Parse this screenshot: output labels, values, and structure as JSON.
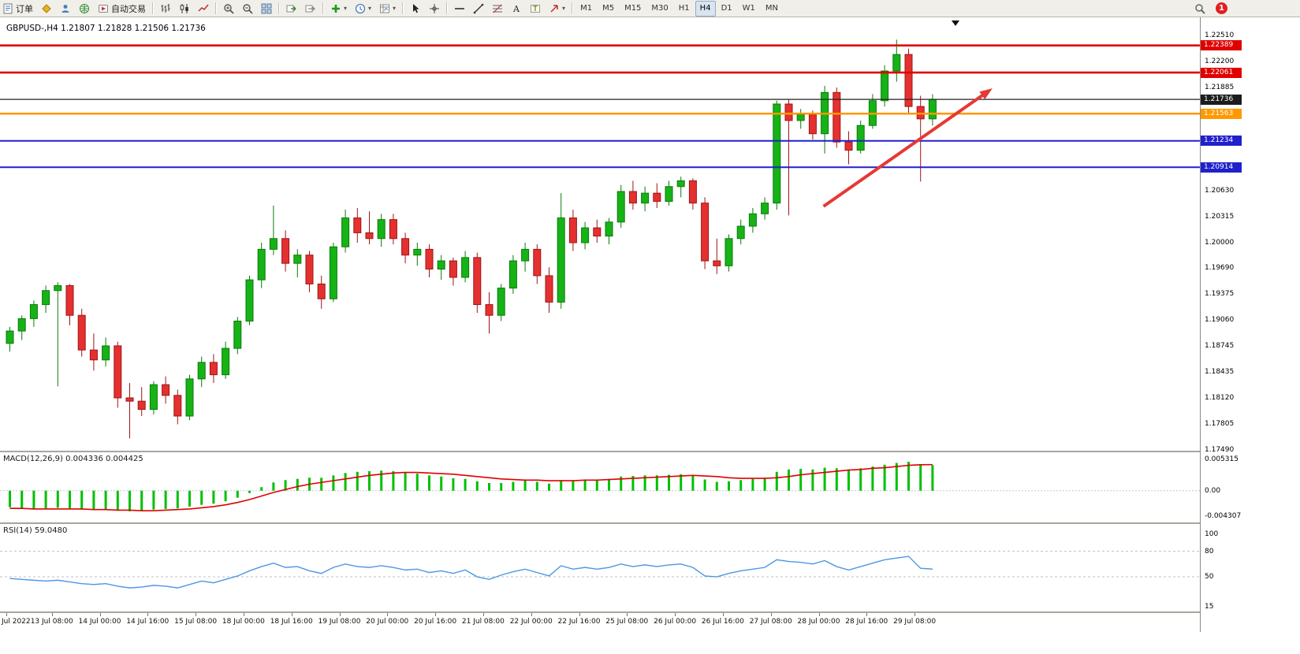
{
  "colors": {
    "bull": "#16b316",
    "bull_stroke": "#0a7a0a",
    "bear": "#e53030",
    "bear_stroke": "#9e1515",
    "macd_bar": "#00c000",
    "macd_signal": "#e00000",
    "rsi_line": "#4d97e3",
    "arrow": "#e53935",
    "badge_black": "#1c1c1c"
  },
  "toolbar": {
    "dropdown_glyph": "▾",
    "groups": [
      {
        "name": "trade",
        "items": [
          {
            "name": "new-order-button",
            "icon": "new-order",
            "label": "订单"
          },
          {
            "name": "market-watch-button",
            "icon": "gold"
          },
          {
            "name": "profiles-button",
            "icon": "person"
          },
          {
            "name": "navigator-button",
            "icon": "globe"
          },
          {
            "name": "autotrading-button",
            "icon": "autotrade",
            "label": "自动交易"
          }
        ]
      },
      {
        "name": "chart-type",
        "items": [
          {
            "name": "bar-chart-button",
            "icon": "ohlc"
          },
          {
            "name": "candlestick-button",
            "icon": "candles"
          },
          {
            "name": "line-chart-button",
            "icon": "linechart"
          }
        ]
      },
      {
        "name": "zoom",
        "items": [
          {
            "name": "zoom-in-button",
            "icon": "zoom-in"
          },
          {
            "name": "zoom-out-button",
            "icon": "zoom-out"
          },
          {
            "name": "tile-windows-button",
            "icon": "tile"
          }
        ]
      },
      {
        "name": "scroll",
        "items": [
          {
            "name": "auto-scroll-button",
            "icon": "auto-scroll"
          },
          {
            "name": "chart-shift-button",
            "icon": "chart-shift"
          }
        ]
      },
      {
        "name": "objects",
        "items": [
          {
            "name": "indicators-button",
            "icon": "indicator-plus",
            "dropdown": true
          },
          {
            "name": "periods-button",
            "icon": "clock",
            "dropdown": true
          },
          {
            "name": "templates-button",
            "icon": "template",
            "dropdown": true
          }
        ]
      },
      {
        "name": "cursor-tools",
        "items": [
          {
            "name": "cursor-button",
            "icon": "cursor"
          },
          {
            "name": "crosshair-button",
            "icon": "crosshair"
          }
        ]
      },
      {
        "name": "draw-tools",
        "items": [
          {
            "name": "horizontal-line-button",
            "icon": "hline"
          },
          {
            "name": "trendline-button",
            "icon": "trendline"
          },
          {
            "name": "fibonacci-button",
            "icon": "fibo"
          },
          {
            "name": "text-button",
            "icon": "text-a"
          },
          {
            "name": "text-label-button",
            "icon": "text-frame"
          },
          {
            "name": "arrows-button",
            "icon": "arrow-shape",
            "dropdown": true
          }
        ]
      }
    ],
    "timeframes": {
      "items": [
        "M1",
        "M5",
        "M15",
        "M30",
        "H1",
        "H4",
        "D1",
        "W1",
        "MN"
      ],
      "selected": "H4"
    },
    "right": {
      "search": {
        "name": "search-button",
        "icon": "search"
      },
      "badge": "1"
    }
  },
  "chart": {
    "title": "GBPUSD-,H4 1.21807 1.21828 1.21506 1.21736",
    "symbol": "GBPUSD-",
    "timeframe": "H4"
  },
  "chart_data": {
    "type": "candlestick",
    "ohlc": {
      "open": 1.21807,
      "high": 1.21828,
      "low": 1.21506,
      "close": 1.21736
    },
    "price_axis": {
      "min": 1.1748,
      "max": 1.2273,
      "labels": [
        {
          "v": 1.2251,
          "t": "1.22510"
        },
        {
          "v": 1.222,
          "t": "1.22200"
        },
        {
          "v": 1.21885,
          "t": "1.21885"
        },
        {
          "v": 1.2063,
          "t": "1.20630"
        },
        {
          "v": 1.20315,
          "t": "1.20315"
        },
        {
          "v": 1.2,
          "t": "1.20000"
        },
        {
          "v": 1.1969,
          "t": "1.19690"
        },
        {
          "v": 1.19375,
          "t": "1.19375"
        },
        {
          "v": 1.1906,
          "t": "1.19060"
        },
        {
          "v": 1.18745,
          "t": "1.18745"
        },
        {
          "v": 1.18435,
          "t": "1.18435"
        },
        {
          "v": 1.1812,
          "t": "1.18120"
        },
        {
          "v": 1.17805,
          "t": "1.17805"
        },
        {
          "v": 1.1749,
          "t": "1.17490"
        }
      ]
    },
    "hlines": [
      {
        "price": 1.22389,
        "t": "1.22389",
        "color": "#e00000",
        "w": 2.6
      },
      {
        "price": 1.22061,
        "t": "1.22061",
        "color": "#e00000",
        "w": 2.6
      },
      {
        "price": 1.21736,
        "t": "1.21736",
        "color": "#222222",
        "w": 1.2,
        "role": "current-price"
      },
      {
        "price": 1.21563,
        "t": "1.21563",
        "color": "#ff9900",
        "w": 2.6
      },
      {
        "price": 1.21234,
        "t": "1.21234",
        "color": "#2020cc",
        "w": 2
      },
      {
        "price": 1.20914,
        "t": "1.20914",
        "color": "#2020cc",
        "w": 2
      }
    ],
    "candles": [
      [
        1.1878,
        1.1898,
        1.1868,
        1.1893
      ],
      [
        1.1893,
        1.1912,
        1.1882,
        1.1908
      ],
      [
        1.1908,
        1.193,
        1.1898,
        1.1925
      ],
      [
        1.1925,
        1.1948,
        1.1915,
        1.1942
      ],
      [
        1.1942,
        1.1952,
        1.1826,
        1.1948
      ],
      [
        1.1948,
        1.195,
        1.19,
        1.1912
      ],
      [
        1.1912,
        1.192,
        1.1862,
        1.187
      ],
      [
        1.187,
        1.189,
        1.1845,
        1.1858
      ],
      [
        1.1858,
        1.1885,
        1.185,
        1.1875
      ],
      [
        1.1875,
        1.188,
        1.18,
        1.1812
      ],
      [
        1.1812,
        1.183,
        1.1763,
        1.1808
      ],
      [
        1.1808,
        1.1825,
        1.179,
        1.1798
      ],
      [
        1.1798,
        1.1832,
        1.1792,
        1.1828
      ],
      [
        1.1828,
        1.1838,
        1.1805,
        1.1815
      ],
      [
        1.1815,
        1.1822,
        1.178,
        1.179
      ],
      [
        1.179,
        1.184,
        1.1785,
        1.1835
      ],
      [
        1.1835,
        1.1862,
        1.1825,
        1.1855
      ],
      [
        1.1855,
        1.1865,
        1.183,
        1.184
      ],
      [
        1.184,
        1.188,
        1.1835,
        1.1872
      ],
      [
        1.1872,
        1.191,
        1.1865,
        1.1905
      ],
      [
        1.1905,
        1.196,
        1.19,
        1.1955
      ],
      [
        1.1955,
        1.2,
        1.1945,
        1.1992
      ],
      [
        1.1992,
        1.2045,
        1.1985,
        1.2005
      ],
      [
        1.2005,
        1.2015,
        1.1965,
        1.1975
      ],
      [
        1.1975,
        1.1992,
        1.1958,
        1.1985
      ],
      [
        1.1985,
        1.199,
        1.194,
        1.195
      ],
      [
        1.195,
        1.196,
        1.192,
        1.1932
      ],
      [
        1.1932,
        1.2,
        1.1928,
        1.1995
      ],
      [
        1.1995,
        1.204,
        1.1988,
        1.203
      ],
      [
        1.203,
        1.2042,
        1.2,
        1.2012
      ],
      [
        1.2012,
        1.2038,
        1.1998,
        1.2005
      ],
      [
        1.2005,
        1.2035,
        1.1995,
        1.2028
      ],
      [
        1.2028,
        1.2035,
        1.1998,
        1.2005
      ],
      [
        1.2005,
        1.2012,
        1.1975,
        1.1985
      ],
      [
        1.1985,
        1.2,
        1.1972,
        1.1992
      ],
      [
        1.1992,
        1.1998,
        1.1958,
        1.1968
      ],
      [
        1.1968,
        1.1985,
        1.1955,
        1.1978
      ],
      [
        1.1978,
        1.1982,
        1.1948,
        1.1958
      ],
      [
        1.1958,
        1.199,
        1.1952,
        1.1982
      ],
      [
        1.1982,
        1.1988,
        1.1915,
        1.1925
      ],
      [
        1.1925,
        1.194,
        1.189,
        1.1912
      ],
      [
        1.1912,
        1.195,
        1.1905,
        1.1945
      ],
      [
        1.1945,
        1.1985,
        1.1938,
        1.1978
      ],
      [
        1.1978,
        1.2,
        1.1965,
        1.1992
      ],
      [
        1.1992,
        1.1998,
        1.195,
        1.196
      ],
      [
        1.196,
        1.197,
        1.1915,
        1.1928
      ],
      [
        1.1928,
        1.206,
        1.192,
        1.203
      ],
      [
        1.203,
        1.204,
        1.199,
        1.2
      ],
      [
        1.2,
        1.2025,
        1.1992,
        1.2018
      ],
      [
        1.2018,
        1.2028,
        1.2,
        1.2008
      ],
      [
        1.2008,
        1.203,
        1.1998,
        1.2025
      ],
      [
        1.2025,
        1.207,
        1.2018,
        1.2062
      ],
      [
        1.2062,
        1.2075,
        1.204,
        1.2048
      ],
      [
        1.2048,
        1.2068,
        1.2038,
        1.206
      ],
      [
        1.206,
        1.2072,
        1.2042,
        1.205
      ],
      [
        1.205,
        1.2075,
        1.2045,
        1.2068
      ],
      [
        1.2068,
        1.208,
        1.2055,
        1.2075
      ],
      [
        1.2075,
        1.2078,
        1.204,
        1.2048
      ],
      [
        1.2048,
        1.2055,
        1.1968,
        1.1978
      ],
      [
        1.1978,
        1.2005,
        1.1962,
        1.1972
      ],
      [
        1.1972,
        1.201,
        1.1965,
        1.2005
      ],
      [
        1.2005,
        1.2028,
        1.1998,
        1.202
      ],
      [
        1.202,
        1.2042,
        1.2012,
        1.2035
      ],
      [
        1.2035,
        1.2055,
        1.2028,
        1.2048
      ],
      [
        1.2048,
        1.2172,
        1.204,
        1.2168
      ],
      [
        1.2168,
        1.2174,
        1.2033,
        1.2148
      ],
      [
        1.2148,
        1.2162,
        1.2138,
        1.2155
      ],
      [
        1.2155,
        1.216,
        1.2125,
        1.2132
      ],
      [
        1.2132,
        1.219,
        1.2108,
        1.2182
      ],
      [
        1.2182,
        1.2188,
        1.2115,
        1.2122
      ],
      [
        1.2122,
        1.2135,
        1.2095,
        1.2112
      ],
      [
        1.2112,
        1.2148,
        1.2108,
        1.2142
      ],
      [
        1.2142,
        1.218,
        1.2138,
        1.2172
      ],
      [
        1.2172,
        1.2215,
        1.2165,
        1.2208
      ],
      [
        1.2208,
        1.2246,
        1.2195,
        1.2228
      ],
      [
        1.2228,
        1.2235,
        1.2155,
        1.2165
      ],
      [
        1.2165,
        1.2178,
        1.2074,
        1.215
      ],
      [
        1.215,
        1.218,
        1.2142,
        1.21736
      ]
    ],
    "time_labels": [
      {
        "i": -0.3,
        "t": "Jul 2022"
      },
      {
        "i": 3.5,
        "t": "13 Jul 08:00"
      },
      {
        "i": 7.5,
        "t": "14 Jul 00:00"
      },
      {
        "i": 11.5,
        "t": "14 Jul 16:00"
      },
      {
        "i": 15.5,
        "t": "15 Jul 08:00"
      },
      {
        "i": 19.5,
        "t": "18 Jul 00:00"
      },
      {
        "i": 23.5,
        "t": "18 Jul 16:00"
      },
      {
        "i": 27.5,
        "t": "19 Jul 08:00"
      },
      {
        "i": 31.5,
        "t": "20 Jul 00:00"
      },
      {
        "i": 35.5,
        "t": "20 Jul 16:00"
      },
      {
        "i": 39.5,
        "t": "21 Jul 08:00"
      },
      {
        "i": 43.5,
        "t": "22 Jul 00:00"
      },
      {
        "i": 47.5,
        "t": "22 Jul 16:00"
      },
      {
        "i": 51.5,
        "t": "25 Jul 08:00"
      },
      {
        "i": 55.5,
        "t": "26 Jul 00:00"
      },
      {
        "i": 59.5,
        "t": "26 Jul 16:00"
      },
      {
        "i": 63.5,
        "t": "27 Jul 08:00"
      },
      {
        "i": 67.5,
        "t": "28 Jul 00:00"
      },
      {
        "i": 71.5,
        "t": "28 Jul 16:00"
      },
      {
        "i": 75.5,
        "t": "29 Jul 08:00"
      }
    ],
    "annotations": {
      "trend_arrow": {
        "i1": 67.9,
        "p1": 1.2044,
        "i2": 82,
        "p2": 1.2187,
        "color": "#e53935",
        "width": 4
      }
    },
    "macd": {
      "label": "MACD(12,26,9) 0.004336 0.004425",
      "params": "12,26,9",
      "main_value": 0.004336,
      "signal_value": 0.004425,
      "axis": {
        "min": -0.00538,
        "max": 0.00638,
        "ticks": [
          {
            "v": 0.005315,
            "t": "0.005315"
          },
          {
            "v": 0,
            "t": "0.00"
          },
          {
            "v": -0.004307,
            "t": "-0.004307"
          }
        ]
      },
      "histogram": [
        -0.0028,
        -0.003,
        -0.0031,
        -0.003,
        -0.0029,
        -0.003,
        -0.0032,
        -0.0033,
        -0.0032,
        -0.0034,
        -0.0035,
        -0.0034,
        -0.0032,
        -0.0031,
        -0.003,
        -0.0027,
        -0.0024,
        -0.0022,
        -0.0018,
        -0.0012,
        -0.0004,
        0.0006,
        0.0014,
        0.0018,
        0.002,
        0.0022,
        0.0022,
        0.0026,
        0.003,
        0.0032,
        0.0033,
        0.0034,
        0.0033,
        0.0031,
        0.0029,
        0.0026,
        0.0024,
        0.0021,
        0.002,
        0.0016,
        0.0013,
        0.0013,
        0.0015,
        0.0017,
        0.0015,
        0.0012,
        0.0018,
        0.0018,
        0.0019,
        0.0019,
        0.002,
        0.0024,
        0.0025,
        0.0026,
        0.0026,
        0.0027,
        0.0028,
        0.0026,
        0.0019,
        0.0015,
        0.0016,
        0.0018,
        0.002,
        0.0022,
        0.0032,
        0.0036,
        0.0037,
        0.0036,
        0.0039,
        0.0038,
        0.0036,
        0.0038,
        0.0041,
        0.0044,
        0.0047,
        0.0049,
        0.0045,
        0.004336
      ],
      "signal": [
        -0.003,
        -0.003,
        -0.0031,
        -0.0031,
        -0.0031,
        -0.0031,
        -0.0031,
        -0.0032,
        -0.0032,
        -0.0033,
        -0.0033,
        -0.0034,
        -0.0034,
        -0.0033,
        -0.0032,
        -0.0031,
        -0.0029,
        -0.0027,
        -0.0024,
        -0.002,
        -0.0015,
        -0.0009,
        -0.0003,
        0.0002,
        0.0007,
        0.0011,
        0.0014,
        0.0017,
        0.002,
        0.0023,
        0.0026,
        0.0028,
        0.003,
        0.0031,
        0.0031,
        0.003,
        0.0029,
        0.0028,
        0.0026,
        0.0024,
        0.0022,
        0.002,
        0.0019,
        0.0018,
        0.0018,
        0.0017,
        0.0017,
        0.0017,
        0.0018,
        0.0018,
        0.0019,
        0.002,
        0.0021,
        0.0022,
        0.0023,
        0.0024,
        0.0025,
        0.0026,
        0.0025,
        0.0024,
        0.0022,
        0.0021,
        0.0021,
        0.0021,
        0.0022,
        0.0024,
        0.0027,
        0.0029,
        0.0031,
        0.0033,
        0.0035,
        0.0036,
        0.0038,
        0.0039,
        0.0041,
        0.0043,
        0.0044,
        0.004425
      ]
    },
    "rsi": {
      "label": "RSI(14) 59.0480",
      "period": 14,
      "value": 59.048,
      "axis": {
        "min": 9.4,
        "max": 111,
        "ticks": [
          {
            "v": 100,
            "t": "100"
          },
          {
            "v": 80,
            "t": "80"
          },
          {
            "v": 50,
            "t": "50"
          },
          {
            "v": 15,
            "t": "15"
          }
        ]
      },
      "levels": [
        80,
        50
      ],
      "values": [
        48,
        47,
        46,
        45,
        46,
        44,
        42,
        41,
        42,
        39,
        37,
        38,
        40,
        39,
        37,
        41,
        45,
        43,
        47,
        51,
        57,
        62,
        66,
        61,
        62,
        57,
        54,
        61,
        65,
        62,
        61,
        63,
        61,
        58,
        59,
        55,
        57,
        54,
        58,
        50,
        47,
        52,
        56,
        59,
        55,
        51,
        63,
        59,
        61,
        59,
        61,
        65,
        62,
        64,
        62,
        64,
        65,
        61,
        51,
        50,
        54,
        57,
        59,
        61,
        70,
        68,
        67,
        65,
        69,
        62,
        58,
        62,
        66,
        70,
        72,
        74,
        60,
        59.048
      ]
    }
  }
}
